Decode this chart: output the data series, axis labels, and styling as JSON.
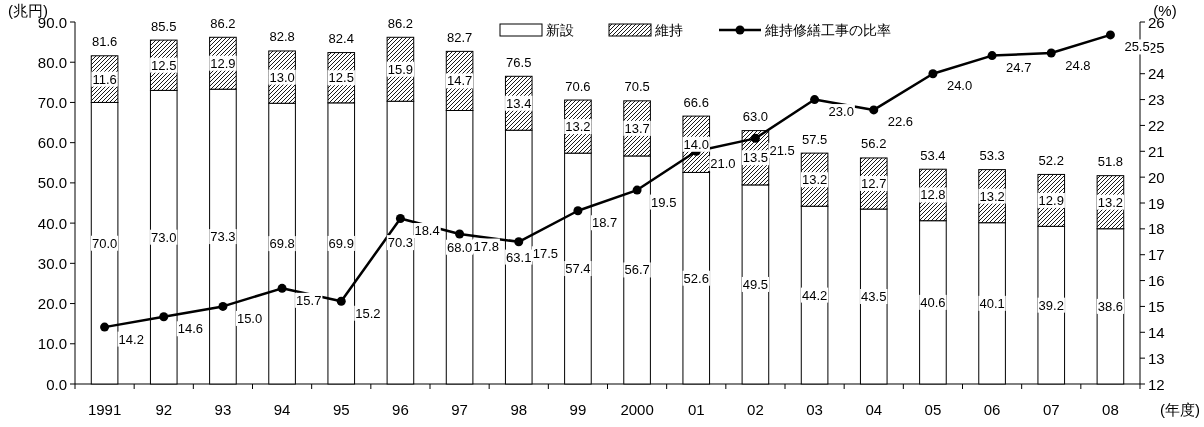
{
  "chart_data": {
    "type": "bar",
    "stacked": true,
    "ylabel": "(兆円)",
    "y2label": "(%)",
    "xlabel": "(年度)",
    "categories": [
      "1991",
      "92",
      "93",
      "94",
      "95",
      "96",
      "97",
      "98",
      "99",
      "2000",
      "01",
      "02",
      "03",
      "04",
      "05",
      "06",
      "07",
      "08"
    ],
    "series": [
      {
        "name": "新設",
        "color": "#ffffff",
        "values": [
          70.0,
          73.0,
          73.3,
          69.8,
          69.9,
          70.3,
          68.0,
          63.1,
          57.4,
          56.7,
          52.6,
          49.5,
          44.2,
          43.5,
          40.6,
          40.1,
          39.2,
          38.6
        ],
        "value_labels": [
          "70.0",
          "73.0",
          "73.3",
          "69.8",
          "69.9",
          "70.3",
          "68.0",
          "63.1",
          "57.4",
          "56.7",
          "52.6",
          "49.5",
          "44.2",
          "43.5",
          "40.6",
          "40.1",
          "39.2",
          "38.6"
        ]
      },
      {
        "name": "維持",
        "color": "#000000",
        "values": [
          11.6,
          12.5,
          12.9,
          13.0,
          12.5,
          15.9,
          14.7,
          13.4,
          13.2,
          13.7,
          14.0,
          13.5,
          13.2,
          12.7,
          12.8,
          13.2,
          12.9,
          13.2
        ],
        "value_labels": [
          "11.6",
          "12.5",
          "12.9",
          "13.0",
          "12.5",
          "15.9",
          "14.7",
          "13.4",
          "13.2",
          "13.7",
          "14.0",
          "13.5",
          "13.2",
          "12.7",
          "12.8",
          "13.2",
          "12.9",
          "13.2"
        ]
      },
      {
        "name": "維持修繕工事の比率",
        "type": "line",
        "axis": "y2",
        "color": "#000000",
        "marker": "circle",
        "values": [
          14.2,
          14.6,
          15.0,
          15.7,
          15.2,
          18.4,
          17.8,
          17.5,
          18.7,
          19.5,
          21.0,
          21.5,
          23.0,
          22.6,
          24.0,
          24.7,
          24.8,
          25.5
        ],
        "value_labels": [
          "14.2",
          "14.6",
          "15.0",
          "15.7",
          "15.2",
          "18.4",
          "17.8",
          "17.5",
          "18.7",
          "19.5",
          "21.0",
          "21.5",
          "23.0",
          "22.6",
          "24.0",
          "24.7",
          "24.8",
          "25.5"
        ]
      }
    ],
    "totals": [
      "81.6",
      "85.5",
      "86.2",
      "82.8",
      "82.4",
      "86.2",
      "82.7",
      "76.5",
      "70.6",
      "70.5",
      "66.6",
      "63.0",
      "57.5",
      "56.2",
      "53.4",
      "53.3",
      "52.2",
      "51.8"
    ],
    "ylim": [
      0,
      90
    ],
    "yticks": [
      {
        "value": 0,
        "label": "0.0"
      },
      {
        "value": 10,
        "label": "10.0"
      },
      {
        "value": 20,
        "label": "20.0"
      },
      {
        "value": 30,
        "label": "30.0"
      },
      {
        "value": 40,
        "label": "40.0"
      },
      {
        "value": 50,
        "label": "50.0"
      },
      {
        "value": 60,
        "label": "60.0"
      },
      {
        "value": 70,
        "label": "70.0"
      },
      {
        "value": 80,
        "label": "80.0"
      },
      {
        "value": 90,
        "label": "90.0"
      }
    ],
    "y2lim": [
      12,
      26
    ],
    "y2ticks": [
      12,
      13,
      14,
      15,
      16,
      17,
      18,
      19,
      20,
      21,
      22,
      23,
      24,
      25,
      26
    ],
    "legend": "top",
    "grid": false
  }
}
